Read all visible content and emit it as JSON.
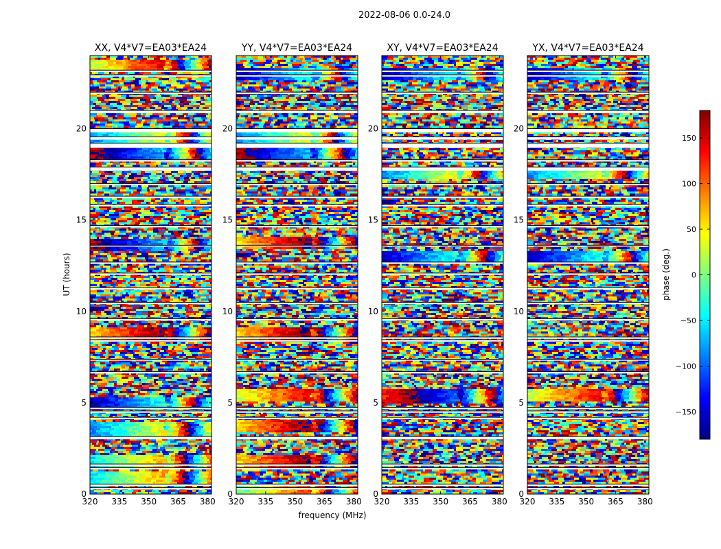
{
  "chart_data": {
    "type": "heatmap",
    "suptitle": "2022-08-06 0.0-24.0",
    "xlabel": "frequency (MHz)",
    "ylabel": "UT (hours)",
    "xlim": [
      320,
      382
    ],
    "ylim": [
      0,
      24
    ],
    "xticks": [
      320,
      335,
      350,
      365,
      380
    ],
    "yticks": [
      0,
      5,
      10,
      15,
      20
    ],
    "panels": [
      {
        "title": "XX, V4*V7=EA03*EA24",
        "coherent_hours": [
          0.9,
          1.9,
          3.6,
          5.0,
          8.8,
          13.7,
          18.7,
          19.6,
          23.5
        ]
      },
      {
        "title": "YY, V4*V7=EA03*EA24",
        "coherent_hours": [
          0.2,
          1.8,
          3.8,
          5.5,
          8.8,
          13.8,
          18.7,
          19.6,
          23.0
        ]
      },
      {
        "title": "XY, V4*V7=EA03*EA24",
        "coherent_hours": [
          5.4,
          13.0,
          17.6,
          23.0
        ]
      },
      {
        "title": "YX, V4*V7=EA03*EA24",
        "coherent_hours": [
          5.5,
          13.0,
          17.6,
          23.0
        ]
      }
    ],
    "colorbar": {
      "label": "phase (deg.)",
      "lim": [
        -180,
        180
      ],
      "ticks": [
        150,
        100,
        50,
        0,
        -50,
        -100,
        -150
      ],
      "tick_labels": [
        "150",
        "100",
        "50",
        "0",
        "−50",
        "−100",
        "−150"
      ],
      "colormap": "jet",
      "colors": [
        "#00007f",
        "#0000ff",
        "#007fff",
        "#00ffff",
        "#7fff7f",
        "#ffff00",
        "#ff7f00",
        "#ff0000",
        "#7f0000"
      ]
    },
    "gap_bands_hours": [
      [
        0.25,
        0.35
      ],
      [
        0.45,
        0.55
      ],
      [
        1.35,
        1.45
      ],
      [
        1.55,
        1.65
      ],
      [
        3.0,
        3.15
      ],
      [
        4.1,
        4.2
      ],
      [
        4.45,
        4.55
      ],
      [
        4.65,
        4.75
      ],
      [
        6.6,
        6.7
      ],
      [
        7.3,
        7.38
      ],
      [
        8.35,
        8.45
      ],
      [
        8.5,
        8.6
      ],
      [
        9.5,
        9.6
      ],
      [
        10.4,
        10.5
      ],
      [
        11.2,
        11.3
      ],
      [
        12.0,
        12.1
      ],
      [
        12.6,
        12.7
      ],
      [
        13.55,
        13.62
      ],
      [
        14.6,
        14.7
      ],
      [
        15.75,
        15.85
      ],
      [
        16.2,
        16.3
      ],
      [
        16.9,
        17.0
      ],
      [
        17.7,
        17.9
      ],
      [
        18.2,
        18.3
      ],
      [
        18.95,
        19.2
      ],
      [
        19.4,
        19.55
      ],
      [
        19.8,
        20.0
      ],
      [
        20.85,
        21.0
      ],
      [
        21.9,
        22.0
      ],
      [
        22.85,
        22.95
      ],
      [
        23.1,
        23.2
      ]
    ]
  }
}
